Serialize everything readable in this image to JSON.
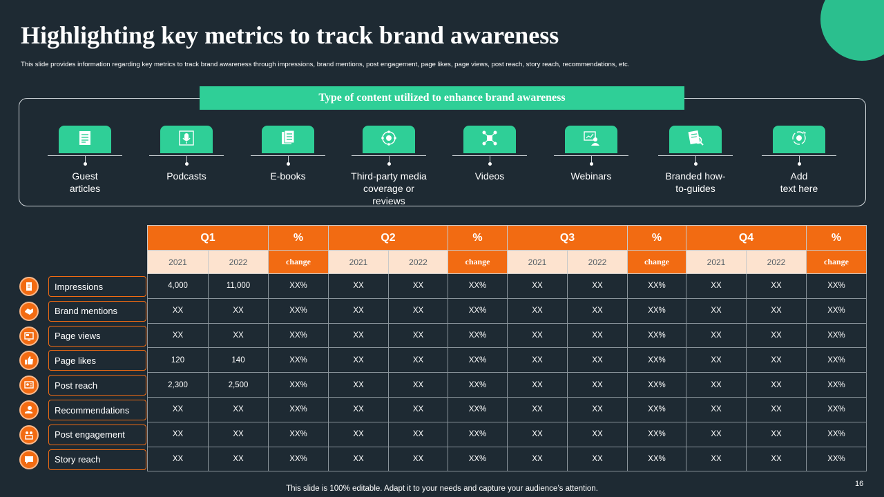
{
  "title": "Highlighting key metrics to track brand awareness",
  "subtitle": "This slide provides information regarding key metrics to track brand awareness through impressions, brand mentions, post engagement,  page likes, page views, post reach, story reach, recommendations, etc.",
  "banner": "Type of content utilized to enhance brand  awareness",
  "content_types": [
    {
      "label": "Guest\narticles",
      "icon": "article-icon"
    },
    {
      "label": "Podcasts",
      "icon": "microphone-icon"
    },
    {
      "label": "E-books",
      "icon": "ebook-icon"
    },
    {
      "label": "Third-party media\ncoverage or reviews",
      "icon": "media-coverage-icon"
    },
    {
      "label": "Videos",
      "icon": "video-network-icon"
    },
    {
      "label": "Webinars",
      "icon": "webinar-icon"
    },
    {
      "label": "Branded how-\nto-guides",
      "icon": "guide-icon"
    },
    {
      "label": "Add\ntext here",
      "icon": "add-text-icon"
    }
  ],
  "table": {
    "quarters": [
      "Q1",
      "Q2",
      "Q3",
      "Q4"
    ],
    "pct": "%",
    "years": [
      "2021",
      "2022"
    ],
    "change": "change",
    "rows": [
      {
        "metric": "Impressions",
        "icon": "impressions-icon",
        "values": [
          "4,000",
          "11,000",
          "XX%",
          "XX",
          "XX",
          "XX%",
          "XX",
          "XX",
          "XX%",
          "XX",
          "XX",
          "XX%"
        ]
      },
      {
        "metric": "Brand mentions",
        "icon": "handshake-icon",
        "values": [
          "XX",
          "XX",
          "XX%",
          "XX",
          "XX",
          "XX%",
          "XX",
          "XX",
          "XX%",
          "XX",
          "XX",
          "XX%"
        ]
      },
      {
        "metric": "Page views",
        "icon": "page-view-icon",
        "values": [
          "XX",
          "XX",
          "XX%",
          "XX",
          "XX",
          "XX%",
          "XX",
          "XX",
          "XX%",
          "XX",
          "XX",
          "XX%"
        ]
      },
      {
        "metric": "Page likes",
        "icon": "thumbs-up-icon",
        "values": [
          "120",
          "140",
          "XX%",
          "XX",
          "XX",
          "XX%",
          "XX",
          "XX",
          "XX%",
          "XX",
          "XX",
          "XX%"
        ]
      },
      {
        "metric": "Post reach",
        "icon": "post-reach-icon",
        "values": [
          "2,300",
          "2,500",
          "XX%",
          "XX",
          "XX",
          "XX%",
          "XX",
          "XX",
          "XX%",
          "XX",
          "XX",
          "XX%"
        ]
      },
      {
        "metric": "Recommendations",
        "icon": "recommend-icon",
        "values": [
          "XX",
          "XX",
          "XX%",
          "XX",
          "XX",
          "XX%",
          "XX",
          "XX",
          "XX%",
          "XX",
          "XX",
          "XX%"
        ]
      },
      {
        "metric": "Post engagement",
        "icon": "engagement-icon",
        "values": [
          "XX",
          "XX",
          "XX%",
          "XX",
          "XX",
          "XX%",
          "XX",
          "XX",
          "XX%",
          "XX",
          "XX",
          "XX%"
        ]
      },
      {
        "metric": "Story reach",
        "icon": "story-reach-icon",
        "values": [
          "XX",
          "XX",
          "XX%",
          "XX",
          "XX",
          "XX%",
          "XX",
          "XX",
          "XX%",
          "XX",
          "XX",
          "XX%"
        ]
      }
    ]
  },
  "footer": "This slide is 100% editable. Adapt it to your needs and capture your audience’s attention.",
  "page_number": "16",
  "colors": {
    "background": "#1e2a33",
    "teal": "#2fcf97",
    "orange": "#f26b12",
    "peach": "#fde3cf"
  }
}
